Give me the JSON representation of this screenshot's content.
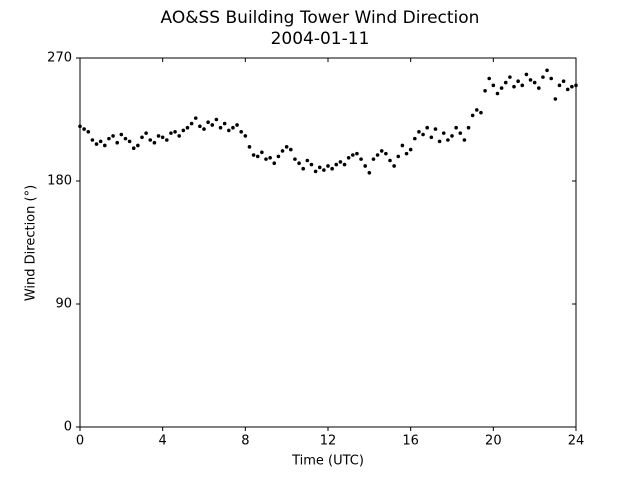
{
  "chart_data": {
    "type": "scatter",
    "title": "AO&SS Building Tower Wind Direction",
    "subtitle": "2004-01-11",
    "x_label": "Time (UTC)",
    "y_label": "Wind Direction (°)",
    "color": "#000000",
    "xlim": [
      0,
      24
    ],
    "xticks": [
      0,
      4,
      8,
      12,
      16,
      20,
      24
    ],
    "ylim": [
      0,
      270
    ],
    "yticks": [
      0,
      90,
      180,
      270
    ],
    "x": [
      0.0,
      0.2,
      0.4,
      0.6,
      0.8,
      1.0,
      1.2,
      1.4,
      1.6,
      1.8,
      2.0,
      2.2,
      2.4,
      2.6,
      2.8,
      3.0,
      3.2,
      3.4,
      3.6,
      3.8,
      4.0,
      4.2,
      4.4,
      4.6,
      4.8,
      5.0,
      5.2,
      5.4,
      5.6,
      5.8,
      6.0,
      6.2,
      6.4,
      6.6,
      6.8,
      7.0,
      7.2,
      7.4,
      7.6,
      7.8,
      8.0,
      8.2,
      8.4,
      8.6,
      8.8,
      9.0,
      9.2,
      9.4,
      9.6,
      9.8,
      10.0,
      10.2,
      10.4,
      10.6,
      10.8,
      11.0,
      11.2,
      11.4,
      11.6,
      11.8,
      12.0,
      12.2,
      12.4,
      12.6,
      12.8,
      13.0,
      13.2,
      13.4,
      13.6,
      13.8,
      14.0,
      14.2,
      14.4,
      14.6,
      14.8,
      15.0,
      15.2,
      15.4,
      15.6,
      15.8,
      16.0,
      16.2,
      16.4,
      16.6,
      16.8,
      17.0,
      17.2,
      17.4,
      17.6,
      17.8,
      18.0,
      18.2,
      18.4,
      18.6,
      18.8,
      19.0,
      19.2,
      19.4,
      19.6,
      19.8,
      20.0,
      20.2,
      20.4,
      20.6,
      20.8,
      21.0,
      21.2,
      21.4,
      21.6,
      21.8,
      22.0,
      22.2,
      22.4,
      22.6,
      22.8,
      23.0,
      23.2,
      23.4,
      23.6,
      23.8,
      24.0
    ],
    "values": [
      220,
      218,
      216,
      210,
      207,
      209,
      206,
      211,
      213,
      208,
      214,
      211,
      209,
      204,
      206,
      212,
      215,
      210,
      208,
      213,
      212,
      210,
      215,
      216,
      213,
      217,
      219,
      222,
      226,
      220,
      218,
      223,
      221,
      225,
      219,
      222,
      217,
      219,
      221,
      216,
      213,
      205,
      199,
      198,
      201,
      196,
      197,
      193,
      198,
      202,
      205,
      203,
      196,
      193,
      189,
      195,
      192,
      187,
      190,
      188,
      191,
      189,
      192,
      194,
      192,
      197,
      199,
      200,
      196,
      191,
      186,
      196,
      199,
      202,
      200,
      195,
      191,
      198,
      206,
      200,
      203,
      211,
      216,
      214,
      219,
      212,
      218,
      209,
      215,
      210,
      213,
      219,
      215,
      210,
      219,
      228,
      232,
      230,
      246,
      255,
      250,
      244,
      248,
      252,
      256,
      249,
      253,
      250,
      258,
      254,
      252,
      248,
      256,
      261,
      255,
      240,
      250,
      253,
      247,
      249,
      250
    ]
  }
}
